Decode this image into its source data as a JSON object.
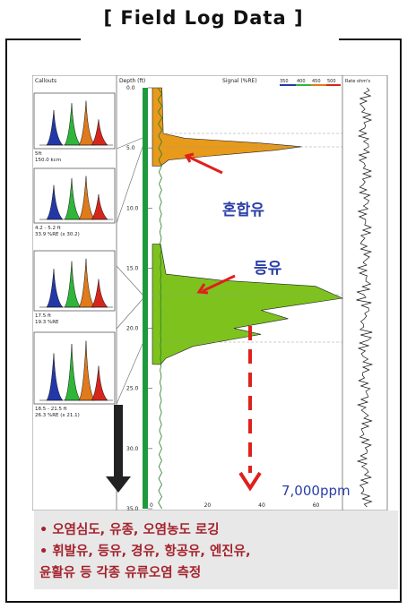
{
  "header": {
    "title": "[ Field Log Data ]"
  },
  "panels": {
    "left_title": "Callouts",
    "depth_title": "Depth (ft)",
    "signal_title": "Signal (%RE)",
    "rate_title": "Rate ohm's",
    "legend_labels": [
      "350",
      "400",
      "450",
      "500"
    ]
  },
  "callouts": [
    {
      "line1": "5ft",
      "line2": "150.0 kcm"
    },
    {
      "line1": "4.2 - 5.2 ft",
      "line2": "33.9 %RE (x 30.2)"
    },
    {
      "line1": "17.5 ft",
      "line2": "19.3 %RE"
    },
    {
      "line1": "18.5 - 21.5 ft",
      "line2": "26.3 %RE (x 21.1)"
    }
  ],
  "annotations": {
    "mixed_oil": "혼합유",
    "kerosene": "등유",
    "concentration": "7,000ppm"
  },
  "chart_data": {
    "type": "area",
    "xlabel": "Signal (%RE)",
    "ylabel": "Depth (ft)",
    "xlim": [
      0,
      70
    ],
    "ylim": [
      0,
      35
    ],
    "x_ticks": [
      "0",
      "20",
      "40",
      "60"
    ],
    "y_ticks": [
      "0.0",
      "5.0",
      "10.0",
      "15.0",
      "20.0",
      "25.0",
      "30.0",
      "35.0"
    ],
    "series": [
      {
        "color": "#e89a1a",
        "points": [
          [
            3.5,
            0
          ],
          [
            4,
            3.8
          ],
          [
            12,
            4.2
          ],
          [
            40,
            4.6
          ],
          [
            55,
            4.9
          ],
          [
            45,
            5.2
          ],
          [
            20,
            5.7
          ],
          [
            6,
            6
          ],
          [
            3,
            6.5
          ]
        ]
      },
      {
        "color": "#7ec21e",
        "points": [
          [
            3,
            13
          ],
          [
            5,
            15.5
          ],
          [
            25,
            16
          ],
          [
            60,
            16.5
          ],
          [
            70,
            17.5
          ],
          [
            55,
            18
          ],
          [
            40,
            18.5
          ],
          [
            50,
            19.2
          ],
          [
            30,
            20
          ],
          [
            40,
            20.5
          ],
          [
            15,
            21.5
          ],
          [
            5,
            22.5
          ],
          [
            3,
            23
          ]
        ]
      }
    ],
    "spectra_legend": [
      "350",
      "400",
      "450",
      "500"
    ],
    "grid": false
  },
  "info_box": {
    "bullets": [
      "• 오염심도, 유종, 오염농도  로깅",
      "• 휘발유, 등유, 경유, 항공유, 엔진유,",
      "   윤활유 등 각종 유류오염 측정"
    ]
  }
}
